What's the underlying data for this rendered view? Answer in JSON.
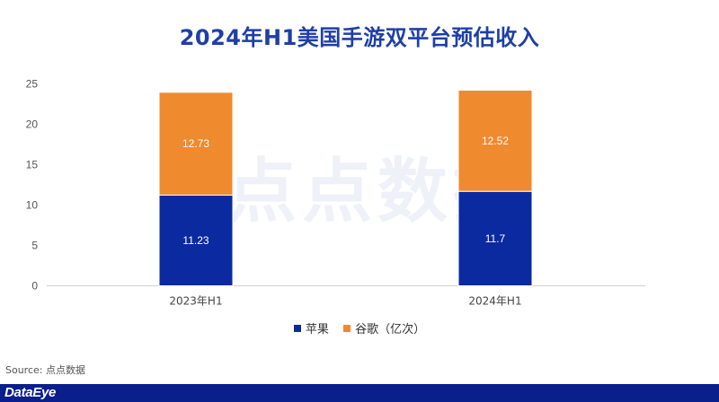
{
  "title": "2024年H1美国手游双平台预估收入",
  "source": "Source: 点点数据",
  "brand": "DataEye",
  "watermark": "点点数据",
  "colors": {
    "apple": "#0b2a9f",
    "google": "#ef8a2f",
    "title": "#1f3fa6",
    "footer": "#0b1f8c"
  },
  "legend": [
    {
      "label": "苹果",
      "color": "#0b2a9f"
    },
    {
      "label": "谷歌（亿次）",
      "color": "#ef8a2f"
    }
  ],
  "chart_data": {
    "type": "bar",
    "stacked": true,
    "title": "2024年H1美国手游双平台预估收入",
    "categories": [
      "2023年H1",
      "2024年H1"
    ],
    "series": [
      {
        "name": "苹果",
        "values": [
          11.23,
          11.7
        ]
      },
      {
        "name": "谷歌（亿次）",
        "values": [
          12.73,
          12.52
        ]
      }
    ],
    "data_labels": [
      [
        "11.23",
        "11.7"
      ],
      [
        "12.73",
        "12.52"
      ]
    ],
    "yticks": [
      0,
      5,
      10,
      15,
      20,
      25
    ],
    "ylim": [
      0,
      25
    ],
    "grid": false,
    "legend_position": "bottom"
  }
}
